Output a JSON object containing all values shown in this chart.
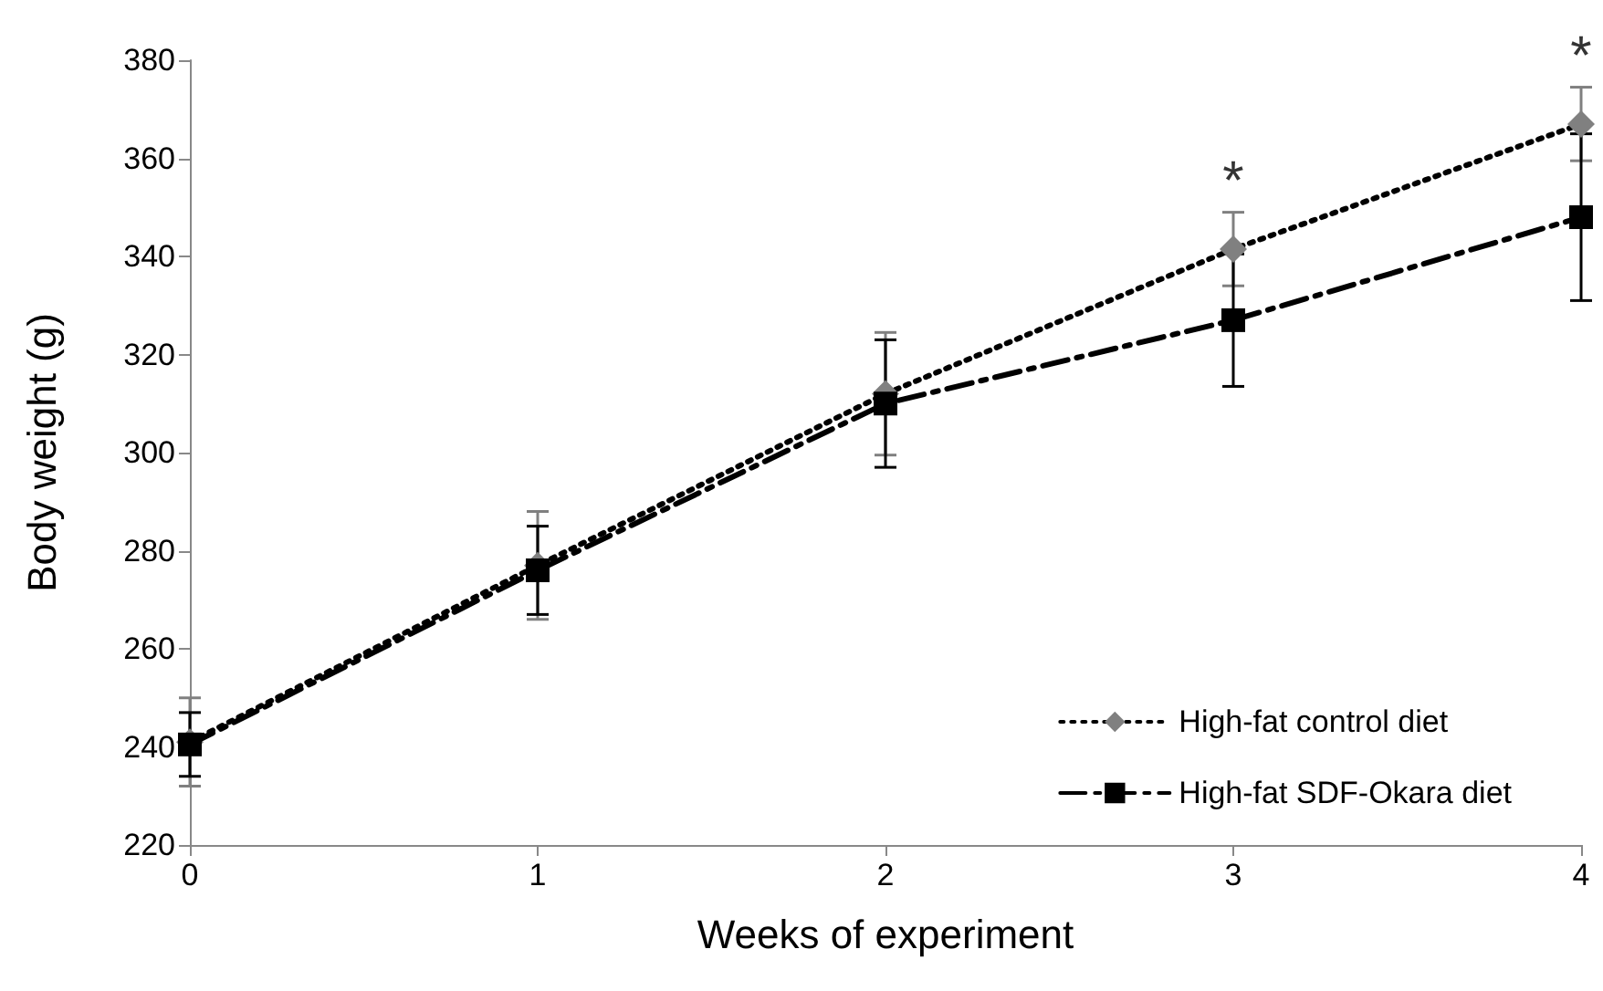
{
  "chart_data": {
    "type": "line",
    "xlabel": "Weeks of experiment",
    "ylabel": "Body weight (g)",
    "x": [
      0,
      1,
      2,
      3,
      4
    ],
    "series": [
      {
        "name": "High-fat control diet",
        "color": "#808080",
        "marker": "diamond",
        "line_style": "dotted",
        "values": [
          241,
          277,
          312,
          341.5,
          367
        ],
        "errors": [
          9,
          11,
          12.5,
          7.5,
          7.5
        ]
      },
      {
        "name": "High-fat SDF-Okara diet",
        "color": "#000000",
        "marker": "square",
        "line_style": "dashed",
        "values": [
          240.5,
          276,
          310,
          327,
          348
        ],
        "errors": [
          6.5,
          9,
          13,
          13.5,
          17
        ]
      }
    ],
    "xlim": [
      0,
      4
    ],
    "xticks": [
      0,
      1,
      2,
      3,
      4
    ],
    "ylim": [
      220,
      380
    ],
    "yticks": [
      220,
      240,
      260,
      280,
      300,
      320,
      340,
      360,
      380
    ],
    "grid": false,
    "legend": "bottom right",
    "annotations": [
      {
        "text": "*",
        "x": 3,
        "y": 349
      },
      {
        "text": "*",
        "x": 4,
        "y": 374.5
      }
    ]
  }
}
